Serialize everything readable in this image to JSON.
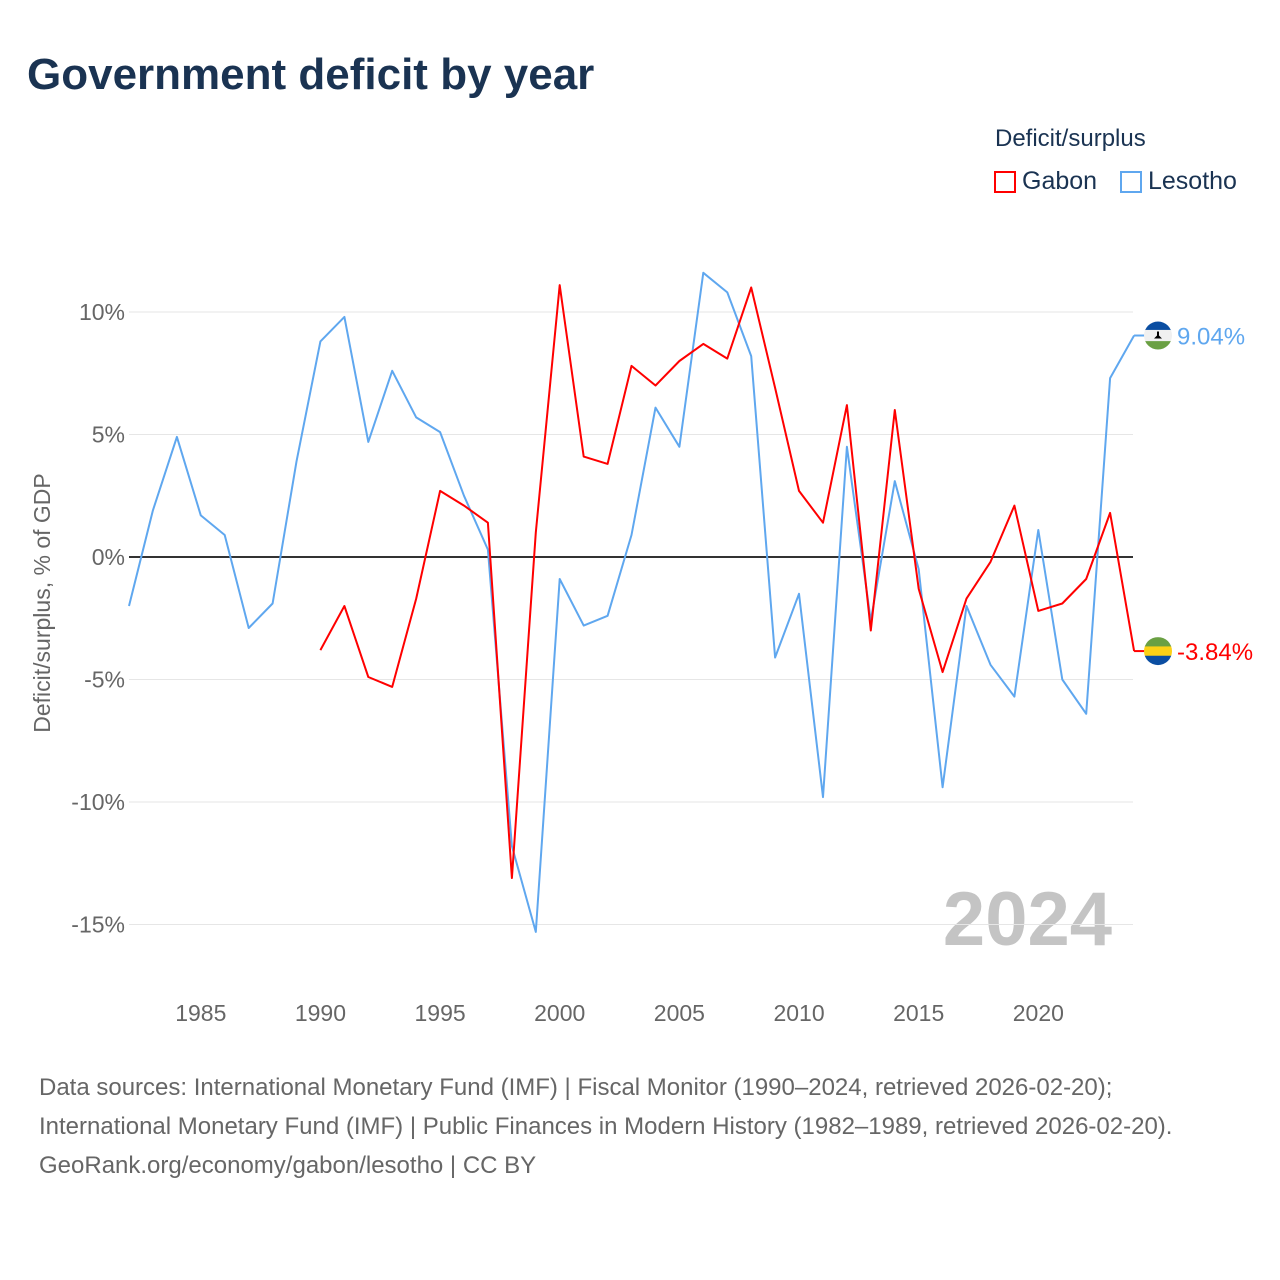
{
  "title": "Government deficit by year",
  "legend": {
    "title": "Deficit/surplus",
    "items": [
      {
        "name": "Gabon",
        "color": "#ff0000"
      },
      {
        "name": "Lesotho",
        "color": "#5fa7ef"
      }
    ]
  },
  "footer": {
    "sources": "Data sources: International Monetary Fund (IMF) | Fiscal Monitor (1990–2024, retrieved 2026-02-20); International Monetary Fund (IMF) | Public Finances in Modern History (1982–1989, retrieved 2026-02-20).",
    "credit": "GeoRank.org/economy/gabon/lesotho | CC BY"
  },
  "chart_data": {
    "type": "line",
    "title": "Government deficit by year",
    "ylabel": "Deficit/surplus, % of GDP",
    "xlabel": "",
    "xlim": [
      1982,
      2024
    ],
    "ylim": [
      -17,
      13
    ],
    "xticks": [
      1985,
      1990,
      1995,
      2000,
      2005,
      2010,
      2015,
      2020
    ],
    "yticks": [
      {
        "v": 10,
        "label": "10%"
      },
      {
        "v": 5,
        "label": "5%"
      },
      {
        "v": 0,
        "label": "0%"
      },
      {
        "v": -5,
        "label": "-5%"
      },
      {
        "v": -10,
        "label": "-10%"
      },
      {
        "v": -15,
        "label": "-15%"
      }
    ],
    "year_watermark": "2024",
    "series": [
      {
        "name": "Lesotho",
        "color": "#5fa7ef",
        "end_label": "9.04%",
        "start": 1982,
        "values": [
          -2.0,
          1.9,
          4.9,
          1.7,
          0.9,
          -2.9,
          -1.9,
          3.9,
          8.8,
          9.8,
          4.7,
          7.6,
          5.7,
          5.1,
          2.5,
          0.3,
          -11.8,
          -15.3,
          -0.9,
          -2.8,
          -2.4,
          0.9,
          6.1,
          4.5,
          11.6,
          10.8,
          8.2,
          -4.1,
          -1.5,
          -9.8,
          4.5,
          -2.6,
          3.1,
          -0.5,
          -9.4,
          -2.0,
          -4.4,
          -5.7,
          1.1,
          -5.0,
          -6.4,
          7.3,
          9.04
        ]
      },
      {
        "name": "Gabon",
        "color": "#ff0000",
        "end_label": "-3.84%",
        "start": 1990,
        "values": [
          -3.8,
          -2.0,
          -4.9,
          -5.3,
          -1.7,
          2.7,
          2.1,
          1.4,
          -13.1,
          1.0,
          11.1,
          4.1,
          3.8,
          7.8,
          7.0,
          8.0,
          8.7,
          8.1,
          11.0,
          6.9,
          2.7,
          1.4,
          6.2,
          -3.0,
          6.0,
          -1.3,
          -4.7,
          -1.7,
          -0.2,
          2.1,
          -2.2,
          -1.9,
          -0.9,
          1.8,
          -3.84
        ]
      }
    ]
  }
}
